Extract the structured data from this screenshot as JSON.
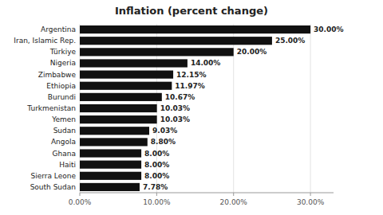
{
  "chart_data": {
    "type": "bar",
    "orientation": "horizontal",
    "title": "Inflation (percent change)",
    "categories": [
      "Argentina",
      "Iran, Islamic Rep.",
      "Türkiye",
      "Nigeria",
      "Zimbabwe",
      "Ethiopia",
      "Burundi",
      "Turkmenistan",
      "Yemen",
      "Sudan",
      "Angola",
      "Ghana",
      "Haiti",
      "Sierra Leone",
      "South Sudan"
    ],
    "values": [
      30.0,
      25.0,
      20.0,
      14.0,
      12.15,
      11.97,
      10.67,
      10.03,
      10.03,
      9.03,
      8.8,
      8.0,
      8.0,
      8.0,
      7.78
    ],
    "value_labels": [
      "30.00%",
      "25.00%",
      "20.00%",
      "14.00%",
      "12.15%",
      "11.97%",
      "10.67%",
      "10.03%",
      "10.03%",
      "9.03%",
      "8.80%",
      "8.00%",
      "8.00%",
      "8.00%",
      "7.78%"
    ],
    "data_labels": true,
    "color": "#111111",
    "xlim": [
      0,
      33
    ],
    "xticks": [
      {
        "value": 0,
        "label": "0.00%"
      },
      {
        "value": 10,
        "label": "10.00%"
      },
      {
        "value": 20,
        "label": "20.00%"
      },
      {
        "value": 30,
        "label": "30.00%"
      }
    ],
    "grid": true
  }
}
